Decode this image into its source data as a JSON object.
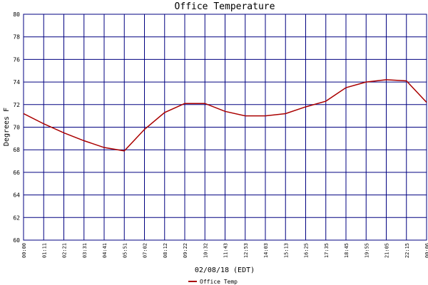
{
  "chart_data": {
    "type": "line",
    "title": "Office Temperature",
    "y_label": "Degrees F",
    "x_label": "02/08/18 (EDT)",
    "categories": [
      "00:00",
      "01:11",
      "02:21",
      "03:31",
      "04:41",
      "05:51",
      "07:02",
      "08:12",
      "09:22",
      "10:32",
      "11:43",
      "12:53",
      "14:03",
      "15:13",
      "16:25",
      "17:35",
      "18:45",
      "19:55",
      "21:05",
      "22:15",
      "00:06"
    ],
    "series": [
      {
        "name": "Office Temp",
        "color": "#aa0000",
        "values": [
          71.2,
          70.3,
          69.5,
          68.8,
          68.2,
          67.9,
          69.8,
          71.3,
          72.1,
          72.1,
          71.4,
          71.0,
          71.0,
          71.2,
          71.8,
          72.3,
          73.5,
          74.0,
          74.2,
          74.1,
          72.2
        ]
      }
    ],
    "ylim": [
      60,
      80
    ],
    "yticks": [
      60,
      62,
      64,
      66,
      68,
      70,
      72,
      74,
      76,
      78,
      80
    ],
    "grid": true,
    "grid_color": "#000080"
  }
}
